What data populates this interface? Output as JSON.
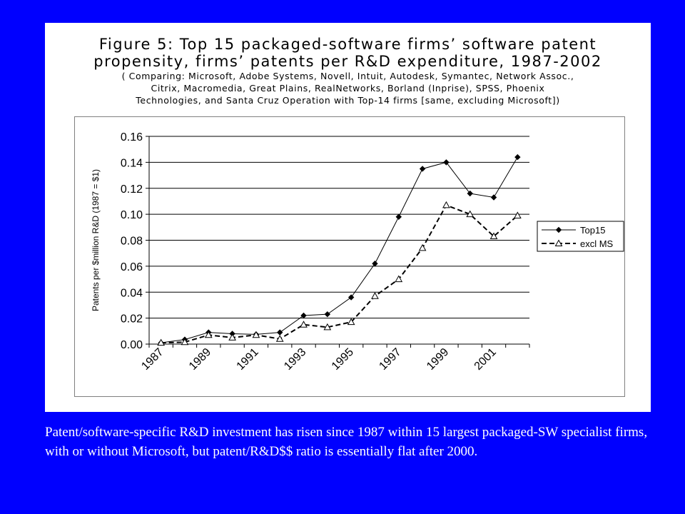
{
  "figure": {
    "title_line1": "Figure 5:  Top 15 packaged-software firms’ software patent",
    "title_line2": "propensity, firms’ patents per R&D expenditure, 1987-2002",
    "subtitle_line1": "( Comparing:  Microsoft, Adobe Systems, Novell, Intuit, Autodesk, Symantec, Network Assoc.,",
    "subtitle_line2": "Citrix, Macromedia, Great Plains, RealNetworks, Borland (Inprise), SPSS, Phoenix",
    "subtitle_line3": "Technologies, and Santa Cruz Operation with Top-14 firms [same, excluding Microsoft])"
  },
  "caption": "Patent/software-specific R&D investment has risen since 1987 within 15 largest packaged-SW specialist firms, with or without Microsoft, but patent/R&D$$ ratio is essentially flat after 2000.",
  "chart_data": {
    "type": "line",
    "title": "Figure 5:  Top 15 packaged-software firms’ software patent propensity, firms’ patents per R&D expenditure, 1987-2002",
    "xlabel": "",
    "ylabel": "Patents per $million R&D (1987 = $1)",
    "x": [
      1987,
      1988,
      1989,
      1990,
      1991,
      1992,
      1993,
      1994,
      1995,
      1996,
      1997,
      1998,
      1999,
      2000,
      2001,
      2002
    ],
    "x_tick_labels": [
      "1987",
      "1989",
      "1991",
      "1993",
      "1995",
      "1997",
      "1999",
      "2001"
    ],
    "y_tick_labels": [
      "0.00",
      "0.02",
      "0.04",
      "0.06",
      "0.08",
      "0.10",
      "0.12",
      "0.14",
      "0.16"
    ],
    "ylim": [
      0,
      0.16
    ],
    "grid": "horizontal",
    "legend_position": "right",
    "series": [
      {
        "name": "Top15",
        "style": "solid",
        "marker": "diamond",
        "color": "#000000",
        "values": [
          0.001,
          0.0035,
          0.009,
          0.008,
          0.0075,
          0.009,
          0.022,
          0.023,
          0.036,
          0.062,
          0.098,
          0.135,
          0.14,
          0.116,
          0.113,
          0.144
        ]
      },
      {
        "name": "excl MS",
        "style": "dashed",
        "marker": "triangle",
        "color": "#000000",
        "values": [
          0.001,
          0.0015,
          0.007,
          0.005,
          0.007,
          0.004,
          0.015,
          0.013,
          0.017,
          0.037,
          0.05,
          0.074,
          0.107,
          0.1,
          0.083,
          0.099
        ]
      }
    ]
  }
}
